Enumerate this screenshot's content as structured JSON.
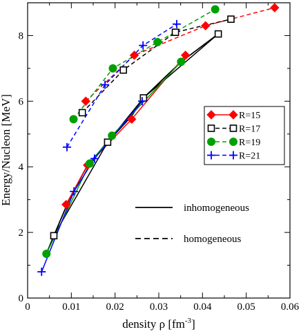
{
  "chart_data": {
    "type": "line",
    "xlabel": "density ρ [fm",
    "xlabel_sup": "-3",
    "xlabel_end": "]",
    "ylabel": "Energy/Nucleon [MeV]",
    "xlim": [
      0,
      0.06
    ],
    "ylim": [
      0,
      9
    ],
    "x_ticks": [
      0,
      0.01,
      0.02,
      0.03,
      0.04,
      0.05,
      0.06
    ],
    "y_ticks": [
      0,
      2,
      4,
      6,
      8
    ],
    "x_tick_labels": [
      "0",
      "0.01",
      "0.02",
      "0.03",
      "0.04",
      "0.05",
      "0.06"
    ],
    "y_tick_labels": [
      "0",
      "2",
      "4",
      "6",
      "8"
    ],
    "grid": false,
    "legend_placement": "right",
    "series": [
      {
        "name": "R=15",
        "color": "#ff0000",
        "marker": "diamond",
        "inhomogeneous": {
          "x": [
            0.0088,
            0.0137,
            0.0238,
            0.0361
          ],
          "y": [
            2.85,
            4.05,
            5.45,
            7.4
          ]
        },
        "homogeneous": {
          "x": [
            0.0133,
            0.0244,
            0.0407,
            0.0565
          ],
          "y": [
            6.0,
            7.4,
            8.3,
            8.85
          ]
        }
      },
      {
        "name": "R=17",
        "color": "#000000",
        "marker": "open-square",
        "inhomogeneous": {
          "x": [
            0.006,
            0.0183,
            0.0265,
            0.0436
          ],
          "y": [
            1.9,
            4.75,
            6.1,
            8.05
          ]
        },
        "homogeneous": {
          "x": [
            0.0125,
            0.0219,
            0.0338,
            0.0465
          ],
          "y": [
            5.65,
            6.95,
            8.1,
            8.5
          ]
        }
      },
      {
        "name": "R=19",
        "color": "#00a000",
        "marker": "filled-circle",
        "inhomogeneous": {
          "x": [
            0.0043,
            0.0142,
            0.0193,
            0.0351
          ],
          "y": [
            1.35,
            4.1,
            4.95,
            7.2
          ]
        },
        "homogeneous": {
          "x": [
            0.0105,
            0.0195,
            0.0297,
            0.0429
          ],
          "y": [
            5.45,
            7.0,
            7.8,
            8.8
          ]
        }
      },
      {
        "name": "R=21",
        "color": "#0000ff",
        "marker": "plus",
        "inhomogeneous": {
          "x": [
            0.0032,
            0.0106,
            0.0153,
            0.0262
          ],
          "y": [
            0.8,
            3.25,
            4.25,
            6.0
          ]
        },
        "homogeneous": {
          "x": [
            0.009,
            0.0177,
            0.0264,
            0.0341
          ],
          "y": [
            4.6,
            6.5,
            7.7,
            8.35
          ]
        }
      }
    ],
    "inhomogeneous_line": {
      "x": [
        0.0043,
        0.006,
        0.0095,
        0.0137,
        0.0183,
        0.0238,
        0.0265,
        0.0351,
        0.0436
      ],
      "y": [
        1.35,
        1.9,
        3.0,
        4.05,
        4.75,
        5.55,
        6.1,
        7.2,
        8.05
      ]
    },
    "style_legend": [
      {
        "label": "inhomogeneous",
        "dash": "solid"
      },
      {
        "label": "homogeneous",
        "dash": "dashed"
      }
    ]
  }
}
